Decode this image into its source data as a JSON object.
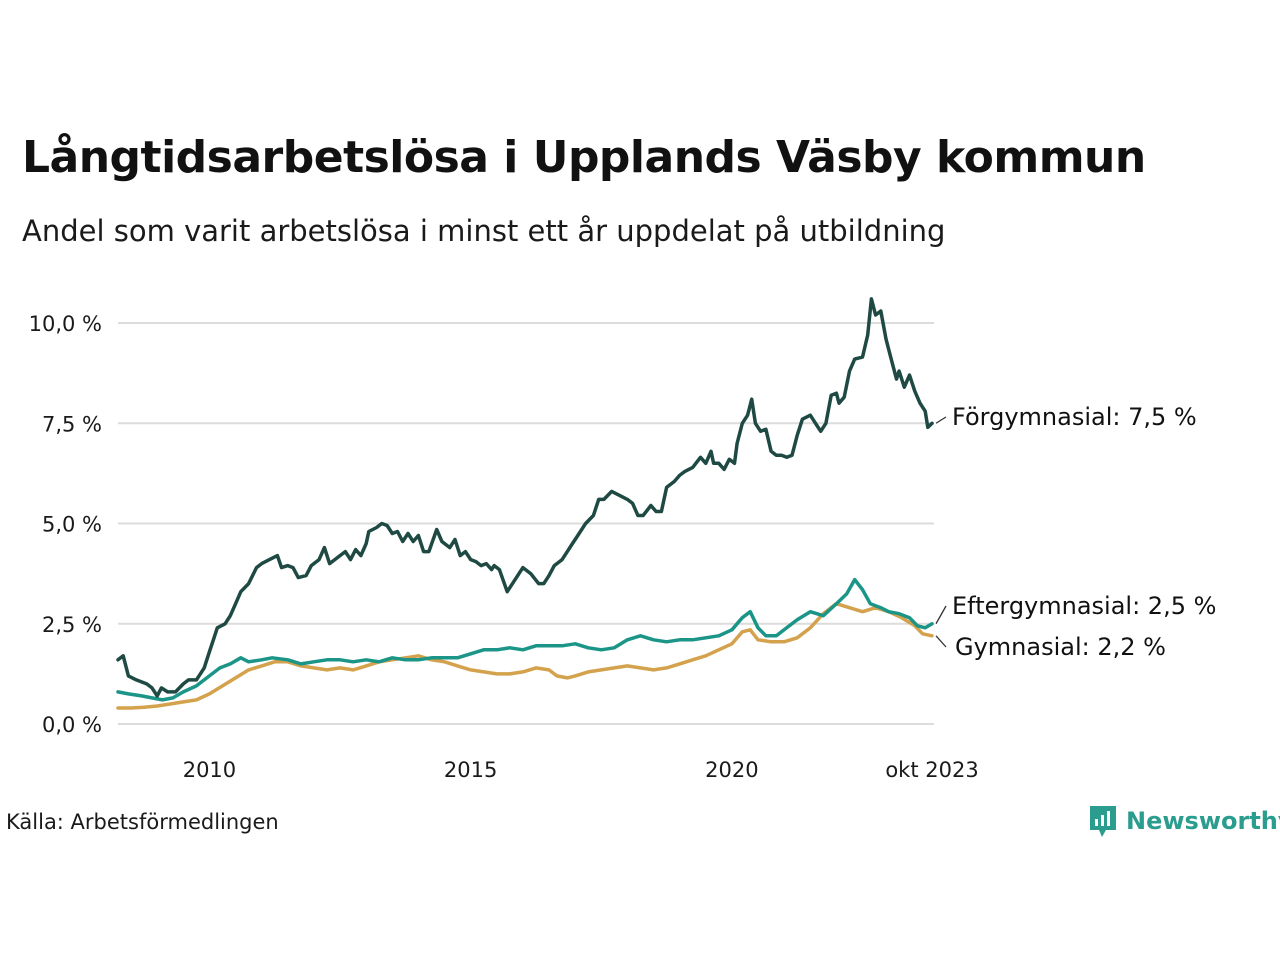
{
  "title": "Långtidsarbetslösa i Upplands Väsby kommun",
  "subtitle": "Andel som varit arbetslösa i minst ett år uppdelat på utbildning",
  "source": "Källa: Arbetsförmedlingen",
  "brand": "Newsworthy",
  "chart_data": {
    "type": "line",
    "title": "Långtidsarbetslösa i Upplands Väsby kommun",
    "xlabel": "",
    "ylabel": "",
    "x_range": [
      2008.25,
      2023.83
    ],
    "ylim": [
      0,
      10.6
    ],
    "yticks": [
      0,
      2.5,
      5,
      7.5,
      10
    ],
    "ytick_labels": [
      "0,0 %",
      "2,5 %",
      "5,0 %",
      "7,5 %",
      "10,0 %"
    ],
    "xticks": [
      2010,
      2015,
      2020,
      2023.83
    ],
    "xtick_labels": [
      "2010",
      "2015",
      "2020",
      "okt 2023"
    ],
    "grid": true,
    "series": [
      {
        "name": "Förgymnasial",
        "label": "Förgymnasial: 7,5 %",
        "color": "#1f4a44",
        "points": [
          [
            2008.25,
            1.6
          ],
          [
            2008.35,
            1.7
          ],
          [
            2008.45,
            1.2
          ],
          [
            2008.6,
            1.1
          ],
          [
            2008.8,
            1.0
          ],
          [
            2008.9,
            0.9
          ],
          [
            2009.0,
            0.7
          ],
          [
            2009.08,
            0.9
          ],
          [
            2009.2,
            0.8
          ],
          [
            2009.35,
            0.8
          ],
          [
            2009.5,
            1.0
          ],
          [
            2009.6,
            1.1
          ],
          [
            2009.75,
            1.1
          ],
          [
            2009.9,
            1.4
          ],
          [
            2010.0,
            1.8
          ],
          [
            2010.1,
            2.2
          ],
          [
            2010.15,
            2.4
          ],
          [
            2010.3,
            2.5
          ],
          [
            2010.4,
            2.7
          ],
          [
            2010.5,
            3.0
          ],
          [
            2010.6,
            3.3
          ],
          [
            2010.75,
            3.5
          ],
          [
            2010.9,
            3.9
          ],
          [
            2011.0,
            4.0
          ],
          [
            2011.15,
            4.1
          ],
          [
            2011.3,
            4.2
          ],
          [
            2011.38,
            3.9
          ],
          [
            2011.5,
            3.95
          ],
          [
            2011.6,
            3.9
          ],
          [
            2011.7,
            3.65
          ],
          [
            2011.85,
            3.7
          ],
          [
            2011.95,
            3.95
          ],
          [
            2012.1,
            4.1
          ],
          [
            2012.2,
            4.4
          ],
          [
            2012.3,
            4.0
          ],
          [
            2012.45,
            4.15
          ],
          [
            2012.6,
            4.3
          ],
          [
            2012.7,
            4.1
          ],
          [
            2012.8,
            4.35
          ],
          [
            2012.9,
            4.2
          ],
          [
            2013.0,
            4.5
          ],
          [
            2013.05,
            4.8
          ],
          [
            2013.2,
            4.9
          ],
          [
            2013.3,
            5.0
          ],
          [
            2013.4,
            4.95
          ],
          [
            2013.5,
            4.75
          ],
          [
            2013.6,
            4.8
          ],
          [
            2013.7,
            4.55
          ],
          [
            2013.8,
            4.75
          ],
          [
            2013.9,
            4.55
          ],
          [
            2014.0,
            4.7
          ],
          [
            2014.1,
            4.3
          ],
          [
            2014.2,
            4.3
          ],
          [
            2014.35,
            4.85
          ],
          [
            2014.45,
            4.55
          ],
          [
            2014.6,
            4.4
          ],
          [
            2014.7,
            4.6
          ],
          [
            2014.8,
            4.2
          ],
          [
            2014.9,
            4.3
          ],
          [
            2015.0,
            4.1
          ],
          [
            2015.1,
            4.05
          ],
          [
            2015.2,
            3.95
          ],
          [
            2015.3,
            4.0
          ],
          [
            2015.4,
            3.85
          ],
          [
            2015.45,
            3.95
          ],
          [
            2015.55,
            3.85
          ],
          [
            2015.7,
            3.3
          ],
          [
            2015.8,
            3.5
          ],
          [
            2015.9,
            3.7
          ],
          [
            2016.0,
            3.9
          ],
          [
            2016.15,
            3.75
          ],
          [
            2016.3,
            3.5
          ],
          [
            2016.4,
            3.5
          ],
          [
            2016.5,
            3.7
          ],
          [
            2016.6,
            3.95
          ],
          [
            2016.75,
            4.1
          ],
          [
            2016.85,
            4.3
          ],
          [
            2016.95,
            4.5
          ],
          [
            2017.05,
            4.7
          ],
          [
            2017.2,
            5.0
          ],
          [
            2017.35,
            5.2
          ],
          [
            2017.45,
            5.6
          ],
          [
            2017.55,
            5.6
          ],
          [
            2017.7,
            5.8
          ],
          [
            2017.85,
            5.7
          ],
          [
            2018.0,
            5.6
          ],
          [
            2018.1,
            5.5
          ],
          [
            2018.2,
            5.2
          ],
          [
            2018.3,
            5.2
          ],
          [
            2018.45,
            5.45
          ],
          [
            2018.55,
            5.3
          ],
          [
            2018.65,
            5.3
          ],
          [
            2018.75,
            5.9
          ],
          [
            2018.9,
            6.05
          ],
          [
            2019.0,
            6.2
          ],
          [
            2019.1,
            6.3
          ],
          [
            2019.25,
            6.4
          ],
          [
            2019.4,
            6.65
          ],
          [
            2019.5,
            6.5
          ],
          [
            2019.6,
            6.8
          ],
          [
            2019.65,
            6.5
          ],
          [
            2019.75,
            6.5
          ],
          [
            2019.85,
            6.35
          ],
          [
            2019.95,
            6.6
          ],
          [
            2020.05,
            6.5
          ],
          [
            2020.1,
            7.0
          ],
          [
            2020.2,
            7.5
          ],
          [
            2020.3,
            7.7
          ],
          [
            2020.38,
            8.1
          ],
          [
            2020.45,
            7.5
          ],
          [
            2020.55,
            7.3
          ],
          [
            2020.65,
            7.35
          ],
          [
            2020.75,
            6.8
          ],
          [
            2020.85,
            6.7
          ],
          [
            2020.95,
            6.7
          ],
          [
            2021.05,
            6.65
          ],
          [
            2021.15,
            6.7
          ],
          [
            2021.25,
            7.2
          ],
          [
            2021.35,
            7.6
          ],
          [
            2021.5,
            7.7
          ],
          [
            2021.6,
            7.5
          ],
          [
            2021.7,
            7.3
          ],
          [
            2021.8,
            7.5
          ],
          [
            2021.9,
            8.2
          ],
          [
            2022.0,
            8.25
          ],
          [
            2022.05,
            8.0
          ],
          [
            2022.15,
            8.15
          ],
          [
            2022.25,
            8.8
          ],
          [
            2022.35,
            9.1
          ],
          [
            2022.5,
            9.15
          ],
          [
            2022.6,
            9.7
          ],
          [
            2022.67,
            10.6
          ],
          [
            2022.75,
            10.2
          ],
          [
            2022.85,
            10.3
          ],
          [
            2022.95,
            9.6
          ],
          [
            2023.05,
            9.1
          ],
          [
            2023.15,
            8.6
          ],
          [
            2023.2,
            8.8
          ],
          [
            2023.3,
            8.4
          ],
          [
            2023.4,
            8.7
          ],
          [
            2023.5,
            8.3
          ],
          [
            2023.6,
            8.0
          ],
          [
            2023.7,
            7.8
          ],
          [
            2023.75,
            7.4
          ],
          [
            2023.83,
            7.5
          ]
        ]
      },
      {
        "name": "Eftergymnasial",
        "label": "Eftergymnasial: 2,5 %",
        "color": "#1b9587",
        "points": [
          [
            2008.25,
            0.8
          ],
          [
            2008.45,
            0.75
          ],
          [
            2008.7,
            0.7
          ],
          [
            2008.9,
            0.65
          ],
          [
            2009.1,
            0.6
          ],
          [
            2009.3,
            0.65
          ],
          [
            2009.5,
            0.8
          ],
          [
            2009.75,
            0.95
          ],
          [
            2010.0,
            1.2
          ],
          [
            2010.2,
            1.4
          ],
          [
            2010.4,
            1.5
          ],
          [
            2010.6,
            1.65
          ],
          [
            2010.75,
            1.55
          ],
          [
            2011.0,
            1.6
          ],
          [
            2011.2,
            1.65
          ],
          [
            2011.5,
            1.6
          ],
          [
            2011.75,
            1.5
          ],
          [
            2012.0,
            1.55
          ],
          [
            2012.25,
            1.6
          ],
          [
            2012.5,
            1.6
          ],
          [
            2012.75,
            1.55
          ],
          [
            2013.0,
            1.6
          ],
          [
            2013.25,
            1.55
          ],
          [
            2013.5,
            1.65
          ],
          [
            2013.75,
            1.6
          ],
          [
            2014.0,
            1.6
          ],
          [
            2014.25,
            1.65
          ],
          [
            2014.5,
            1.65
          ],
          [
            2014.75,
            1.65
          ],
          [
            2015.0,
            1.75
          ],
          [
            2015.25,
            1.85
          ],
          [
            2015.5,
            1.85
          ],
          [
            2015.75,
            1.9
          ],
          [
            2016.0,
            1.85
          ],
          [
            2016.25,
            1.95
          ],
          [
            2016.5,
            1.95
          ],
          [
            2016.75,
            1.95
          ],
          [
            2017.0,
            2.0
          ],
          [
            2017.25,
            1.9
          ],
          [
            2017.5,
            1.85
          ],
          [
            2017.75,
            1.9
          ],
          [
            2018.0,
            2.1
          ],
          [
            2018.25,
            2.2
          ],
          [
            2018.5,
            2.1
          ],
          [
            2018.75,
            2.05
          ],
          [
            2019.0,
            2.1
          ],
          [
            2019.25,
            2.1
          ],
          [
            2019.5,
            2.15
          ],
          [
            2019.75,
            2.2
          ],
          [
            2020.0,
            2.35
          ],
          [
            2020.2,
            2.65
          ],
          [
            2020.35,
            2.8
          ],
          [
            2020.5,
            2.4
          ],
          [
            2020.65,
            2.2
          ],
          [
            2020.85,
            2.2
          ],
          [
            2021.0,
            2.35
          ],
          [
            2021.25,
            2.6
          ],
          [
            2021.5,
            2.8
          ],
          [
            2021.75,
            2.7
          ],
          [
            2022.0,
            3.0
          ],
          [
            2022.2,
            3.25
          ],
          [
            2022.35,
            3.6
          ],
          [
            2022.5,
            3.35
          ],
          [
            2022.65,
            3.0
          ],
          [
            2022.85,
            2.9
          ],
          [
            2023.0,
            2.8
          ],
          [
            2023.2,
            2.75
          ],
          [
            2023.4,
            2.65
          ],
          [
            2023.55,
            2.45
          ],
          [
            2023.7,
            2.4
          ],
          [
            2023.83,
            2.5
          ]
        ]
      },
      {
        "name": "Gymnasial",
        "label": "Gymnasial: 2,2 %",
        "color": "#d4a24c",
        "points": [
          [
            2008.25,
            0.4
          ],
          [
            2008.5,
            0.4
          ],
          [
            2008.75,
            0.42
          ],
          [
            2009.0,
            0.45
          ],
          [
            2009.25,
            0.5
          ],
          [
            2009.5,
            0.55
          ],
          [
            2009.75,
            0.6
          ],
          [
            2010.0,
            0.75
          ],
          [
            2010.25,
            0.95
          ],
          [
            2010.5,
            1.15
          ],
          [
            2010.75,
            1.35
          ],
          [
            2011.0,
            1.45
          ],
          [
            2011.25,
            1.55
          ],
          [
            2011.5,
            1.55
          ],
          [
            2011.75,
            1.45
          ],
          [
            2012.0,
            1.4
          ],
          [
            2012.25,
            1.35
          ],
          [
            2012.5,
            1.4
          ],
          [
            2012.75,
            1.35
          ],
          [
            2013.0,
            1.45
          ],
          [
            2013.25,
            1.55
          ],
          [
            2013.5,
            1.6
          ],
          [
            2013.75,
            1.65
          ],
          [
            2014.0,
            1.7
          ],
          [
            2014.25,
            1.6
          ],
          [
            2014.5,
            1.55
          ],
          [
            2014.75,
            1.45
          ],
          [
            2015.0,
            1.35
          ],
          [
            2015.25,
            1.3
          ],
          [
            2015.5,
            1.25
          ],
          [
            2015.75,
            1.25
          ],
          [
            2016.0,
            1.3
          ],
          [
            2016.25,
            1.4
          ],
          [
            2016.5,
            1.35
          ],
          [
            2016.65,
            1.2
          ],
          [
            2016.85,
            1.15
          ],
          [
            2017.0,
            1.2
          ],
          [
            2017.25,
            1.3
          ],
          [
            2017.5,
            1.35
          ],
          [
            2017.75,
            1.4
          ],
          [
            2018.0,
            1.45
          ],
          [
            2018.25,
            1.4
          ],
          [
            2018.5,
            1.35
          ],
          [
            2018.75,
            1.4
          ],
          [
            2019.0,
            1.5
          ],
          [
            2019.25,
            1.6
          ],
          [
            2019.5,
            1.7
          ],
          [
            2019.75,
            1.85
          ],
          [
            2020.0,
            2.0
          ],
          [
            2020.2,
            2.3
          ],
          [
            2020.35,
            2.35
          ],
          [
            2020.5,
            2.1
          ],
          [
            2020.75,
            2.05
          ],
          [
            2021.0,
            2.05
          ],
          [
            2021.25,
            2.15
          ],
          [
            2021.5,
            2.4
          ],
          [
            2021.75,
            2.75
          ],
          [
            2022.0,
            3.0
          ],
          [
            2022.25,
            2.9
          ],
          [
            2022.5,
            2.8
          ],
          [
            2022.75,
            2.9
          ],
          [
            2023.0,
            2.8
          ],
          [
            2023.25,
            2.65
          ],
          [
            2023.5,
            2.45
          ],
          [
            2023.65,
            2.25
          ],
          [
            2023.83,
            2.2
          ]
        ]
      }
    ]
  }
}
